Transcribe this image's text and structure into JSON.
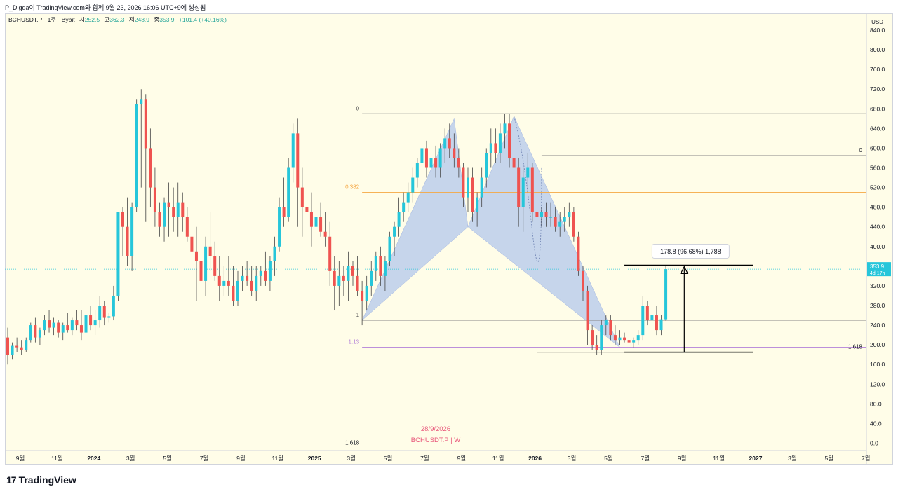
{
  "header": {
    "caption": "P_Digda이 TradingView.com와 함께 9월 23, 2026 16:06 UTC+9에 생성됨"
  },
  "legend": {
    "symbol": "BCHUSDT.P · 1주 · Bybit",
    "open_label": "시",
    "open": "252.5",
    "high_label": "고",
    "high": "362.3",
    "low_label": "저",
    "low": "248.9",
    "close_label": "종",
    "close": "353.9",
    "change": "+101.4 (+40.16%)"
  },
  "colors": {
    "background": "#fffde8",
    "up": "#26c6da",
    "down": "#ef5350",
    "harmonic_fill": "#b3c7ec",
    "fib_orange": "#f5a742",
    "fib_purple": "#b27fd8",
    "watermark": "#e8567a"
  },
  "price_axis": {
    "currency": "USDT",
    "last_price": "353.9",
    "countdown": "4d 17h",
    "ticks": [
      "0.0",
      "40.0",
      "80.0",
      "120.0",
      "160.0",
      "200.0",
      "240.0",
      "280.0",
      "320.0",
      "360.0",
      "400.0",
      "440.0",
      "480.0",
      "520.0",
      "560.0",
      "600.0",
      "640.0",
      "680.0",
      "720.0",
      "760.0",
      "800.0",
      "840.0"
    ]
  },
  "time_axis": {
    "labels": [
      "9월",
      "11월",
      "2024",
      "3월",
      "5월",
      "7월",
      "9월",
      "11월",
      "2025",
      "3월",
      "5월",
      "7월",
      "9월",
      "11월",
      "2026",
      "3월",
      "5월",
      "7월",
      "9월",
      "11월",
      "2027",
      "3월",
      "5월",
      "7월"
    ]
  },
  "annotations": {
    "measure_label": "178.8 (96.68%) 1,788",
    "fib_left_0": "0",
    "fib_left_0382": "0.382",
    "fib_left_1": "1",
    "fib_left_113": "1.13",
    "fib_left_1618": "1.618",
    "fib_right_0": "0",
    "fib_right_1618": "1.618"
  },
  "watermark": {
    "date": "28/9/2026",
    "symbol": "BCHUSDT.P | W"
  },
  "footer": {
    "logo_mark": "17",
    "logo_text": "TradingView"
  },
  "chart_data": {
    "type": "candlestick",
    "symbol": "BCHUSDT.P",
    "interval": "1W",
    "y_range": [
      0,
      860
    ],
    "x_labels": [
      "9월",
      "11월",
      "2024",
      "3월",
      "5월",
      "7월",
      "9월",
      "11월",
      "2025",
      "3월",
      "5월",
      "7월",
      "9월",
      "11월",
      "2026",
      "3월",
      "5월",
      "7월",
      "9월",
      "11월",
      "2027",
      "3월",
      "5월",
      "7월"
    ],
    "ohlc": [
      [
        215,
        235,
        160,
        180
      ],
      [
        180,
        205,
        170,
        198
      ],
      [
        198,
        215,
        185,
        195
      ],
      [
        195,
        210,
        180,
        190
      ],
      [
        190,
        215,
        185,
        210
      ],
      [
        210,
        245,
        205,
        240
      ],
      [
        240,
        255,
        205,
        215
      ],
      [
        215,
        235,
        200,
        230
      ],
      [
        230,
        260,
        220,
        250
      ],
      [
        250,
        270,
        225,
        235
      ],
      [
        235,
        255,
        220,
        245
      ],
      [
        245,
        250,
        215,
        225
      ],
      [
        225,
        245,
        210,
        240
      ],
      [
        240,
        265,
        225,
        230
      ],
      [
        230,
        255,
        220,
        250
      ],
      [
        250,
        270,
        230,
        240
      ],
      [
        240,
        270,
        210,
        225
      ],
      [
        225,
        290,
        215,
        260
      ],
      [
        260,
        280,
        230,
        240
      ],
      [
        240,
        270,
        220,
        250
      ],
      [
        250,
        300,
        235,
        280
      ],
      [
        280,
        290,
        240,
        255
      ],
      [
        255,
        265,
        245,
        258
      ],
      [
        258,
        320,
        250,
        300
      ],
      [
        300,
        470,
        290,
        470
      ],
      [
        470,
        480,
        380,
        440
      ],
      [
        440,
        500,
        360,
        380
      ],
      [
        380,
        490,
        350,
        480
      ],
      [
        480,
        700,
        470,
        690
      ],
      [
        690,
        720,
        520,
        700
      ],
      [
        700,
        710,
        450,
        600
      ],
      [
        600,
        640,
        480,
        520
      ],
      [
        520,
        560,
        440,
        470
      ],
      [
        470,
        490,
        420,
        440
      ],
      [
        440,
        500,
        410,
        490
      ],
      [
        490,
        530,
        420,
        480
      ],
      [
        480,
        520,
        430,
        460
      ],
      [
        460,
        530,
        420,
        490
      ],
      [
        490,
        510,
        430,
        460
      ],
      [
        460,
        480,
        410,
        420
      ],
      [
        420,
        450,
        370,
        390
      ],
      [
        390,
        440,
        290,
        370
      ],
      [
        370,
        400,
        300,
        330
      ],
      [
        330,
        420,
        300,
        400
      ],
      [
        400,
        470,
        350,
        380
      ],
      [
        380,
        410,
        330,
        340
      ],
      [
        340,
        380,
        290,
        320
      ],
      [
        320,
        360,
        300,
        330
      ],
      [
        330,
        380,
        300,
        320
      ],
      [
        320,
        360,
        280,
        290
      ],
      [
        290,
        350,
        280,
        330
      ],
      [
        330,
        360,
        310,
        340
      ],
      [
        340,
        370,
        320,
        330
      ],
      [
        330,
        360,
        300,
        310
      ],
      [
        310,
        360,
        290,
        340
      ],
      [
        340,
        360,
        320,
        350
      ],
      [
        350,
        390,
        320,
        330
      ],
      [
        330,
        380,
        310,
        370
      ],
      [
        370,
        420,
        340,
        400
      ],
      [
        400,
        500,
        390,
        480
      ],
      [
        480,
        540,
        440,
        460
      ],
      [
        460,
        580,
        450,
        560
      ],
      [
        560,
        650,
        530,
        630
      ],
      [
        630,
        660,
        440,
        520
      ],
      [
        520,
        560,
        420,
        480
      ],
      [
        480,
        530,
        400,
        470
      ],
      [
        470,
        510,
        400,
        440
      ],
      [
        440,
        480,
        390,
        460
      ],
      [
        460,
        490,
        420,
        430
      ],
      [
        430,
        470,
        400,
        420
      ],
      [
        420,
        450,
        320,
        350
      ],
      [
        350,
        380,
        270,
        320
      ],
      [
        320,
        370,
        280,
        340
      ],
      [
        340,
        360,
        300,
        330
      ],
      [
        330,
        390,
        290,
        360
      ],
      [
        360,
        370,
        320,
        340
      ],
      [
        340,
        380,
        300,
        310
      ],
      [
        310,
        330,
        240,
        290
      ],
      [
        290,
        340,
        270,
        320
      ],
      [
        320,
        370,
        300,
        350
      ],
      [
        350,
        390,
        330,
        380
      ],
      [
        380,
        400,
        320,
        340
      ],
      [
        340,
        380,
        310,
        370
      ],
      [
        370,
        430,
        360,
        420
      ],
      [
        420,
        450,
        380,
        440
      ],
      [
        440,
        500,
        420,
        470
      ],
      [
        470,
        510,
        450,
        490
      ],
      [
        490,
        530,
        470,
        510
      ],
      [
        510,
        560,
        490,
        540
      ],
      [
        540,
        580,
        520,
        570
      ],
      [
        570,
        610,
        540,
        600
      ],
      [
        600,
        615,
        540,
        560
      ],
      [
        560,
        600,
        530,
        580
      ],
      [
        580,
        605,
        540,
        560
      ],
      [
        560,
        610,
        540,
        600
      ],
      [
        600,
        640,
        570,
        620
      ],
      [
        620,
        650,
        580,
        600
      ],
      [
        600,
        630,
        560,
        580
      ],
      [
        580,
        600,
        540,
        560
      ],
      [
        560,
        570,
        480,
        500
      ],
      [
        500,
        560,
        470,
        540
      ],
      [
        540,
        560,
        450,
        470
      ],
      [
        470,
        510,
        440,
        500
      ],
      [
        500,
        560,
        480,
        540
      ],
      [
        540,
        600,
        520,
        590
      ],
      [
        590,
        640,
        560,
        610
      ],
      [
        610,
        640,
        570,
        590
      ],
      [
        590,
        650,
        570,
        630
      ],
      [
        630,
        670,
        600,
        650
      ],
      [
        650,
        670,
        560,
        580
      ],
      [
        580,
        610,
        540,
        560
      ],
      [
        560,
        580,
        440,
        480
      ],
      [
        480,
        560,
        430,
        540
      ],
      [
        540,
        590,
        510,
        560
      ],
      [
        560,
        570,
        450,
        470
      ],
      [
        470,
        490,
        440,
        460
      ],
      [
        460,
        480,
        440,
        470
      ],
      [
        470,
        490,
        440,
        460
      ],
      [
        460,
        490,
        440,
        460
      ],
      [
        460,
        480,
        430,
        440
      ],
      [
        440,
        470,
        420,
        450
      ],
      [
        450,
        480,
        430,
        460
      ],
      [
        460,
        490,
        440,
        470
      ],
      [
        470,
        480,
        410,
        420
      ],
      [
        420,
        430,
        340,
        350
      ],
      [
        350,
        360,
        290,
        310
      ],
      [
        310,
        320,
        200,
        230
      ],
      [
        230,
        240,
        190,
        200
      ],
      [
        200,
        220,
        180,
        190
      ],
      [
        190,
        250,
        180,
        240
      ],
      [
        240,
        260,
        220,
        250
      ],
      [
        250,
        260,
        210,
        220
      ],
      [
        220,
        240,
        200,
        210
      ],
      [
        210,
        230,
        200,
        215
      ],
      [
        215,
        225,
        205,
        210
      ],
      [
        210,
        220,
        200,
        205
      ],
      [
        205,
        215,
        195,
        210
      ],
      [
        210,
        230,
        200,
        220
      ],
      [
        220,
        300,
        210,
        280
      ],
      [
        280,
        290,
        240,
        250
      ],
      [
        250,
        270,
        230,
        260
      ],
      [
        260,
        280,
        220,
        230
      ],
      [
        230,
        260,
        220,
        252
      ],
      [
        252,
        362,
        249,
        354
      ]
    ]
  }
}
